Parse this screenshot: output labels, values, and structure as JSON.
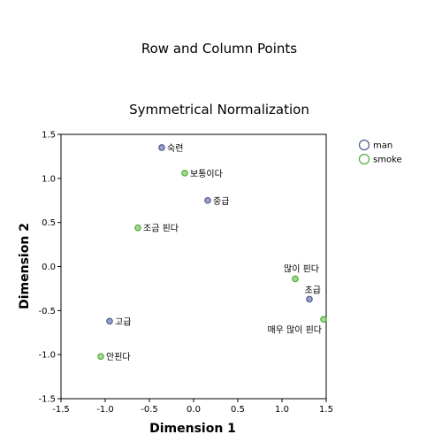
{
  "chart_data": {
    "type": "scatter",
    "title": "Row and Column Points",
    "subtitle": "Symmetrical Normalization",
    "xlabel": "Dimension 1",
    "ylabel": "Dimension 2",
    "xlim": [
      -1.5,
      1.5
    ],
    "ylim": [
      -1.5,
      1.5
    ],
    "xticks": [
      "-1.5",
      "-1.0",
      "-0.5",
      "0.0",
      "0.5",
      "1.0",
      "1.5"
    ],
    "yticks": [
      "1.5",
      "1.0",
      "0.5",
      "0.0",
      "-0.5",
      "-1.0",
      "-1.5"
    ],
    "grid": false,
    "legend": "top-right",
    "series": [
      {
        "name": "man",
        "color": "#4a5a8f",
        "points": [
          {
            "label": "숙련",
            "x": -0.36,
            "y": 1.35
          },
          {
            "label": "중급",
            "x": 0.16,
            "y": 0.75
          },
          {
            "label": "고급",
            "x": -0.95,
            "y": -0.62
          },
          {
            "label": "초급",
            "x": 1.31,
            "y": -0.37
          }
        ]
      },
      {
        "name": "smoke",
        "color": "#4caf3a",
        "points": [
          {
            "label": "보통이다",
            "x": -0.1,
            "y": 1.06
          },
          {
            "label": "조금 핀다",
            "x": -0.63,
            "y": 0.44
          },
          {
            "label": "많이 핀다",
            "x": 1.15,
            "y": -0.14
          },
          {
            "label": "매우 많이 핀다",
            "x": 1.47,
            "y": -0.6
          },
          {
            "label": "안핀다",
            "x": -1.05,
            "y": -1.02
          }
        ]
      }
    ]
  }
}
